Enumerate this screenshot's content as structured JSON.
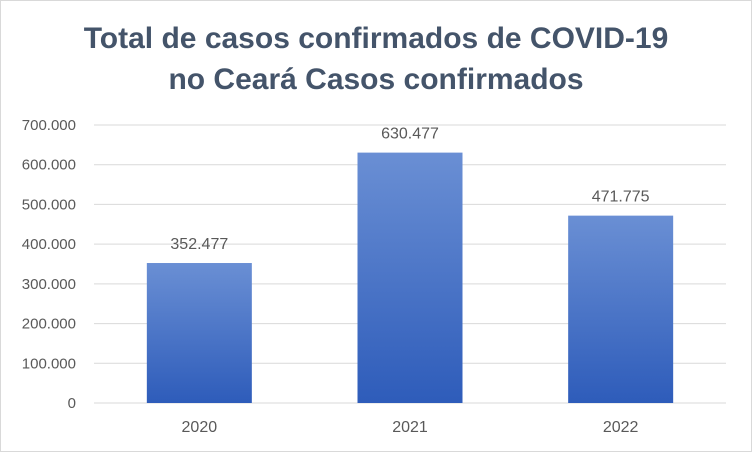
{
  "chart_data": {
    "type": "bar",
    "title": "Total de casos confirmados de COVID-19\nno Ceará Casos confirmados",
    "categories": [
      "2020",
      "2021",
      "2022"
    ],
    "series": [
      {
        "values": [
          352477,
          630477,
          471775
        ]
      }
    ],
    "data_labels": [
      "352.477",
      "630.477",
      "471.775"
    ],
    "y_tick_labels": [
      "0",
      "100.000",
      "200.000",
      "300.000",
      "400.000",
      "500.000",
      "600.000",
      "700.000"
    ],
    "ylim": [
      0,
      700000
    ],
    "xlabel": "",
    "ylabel": "",
    "grid": true,
    "legend": "none",
    "colors": {
      "bar_top": "#6a8fd4",
      "bar_bottom": "#2e5cba",
      "grid": "#d9d9d9",
      "title": "#44546a",
      "text": "#595959"
    }
  }
}
